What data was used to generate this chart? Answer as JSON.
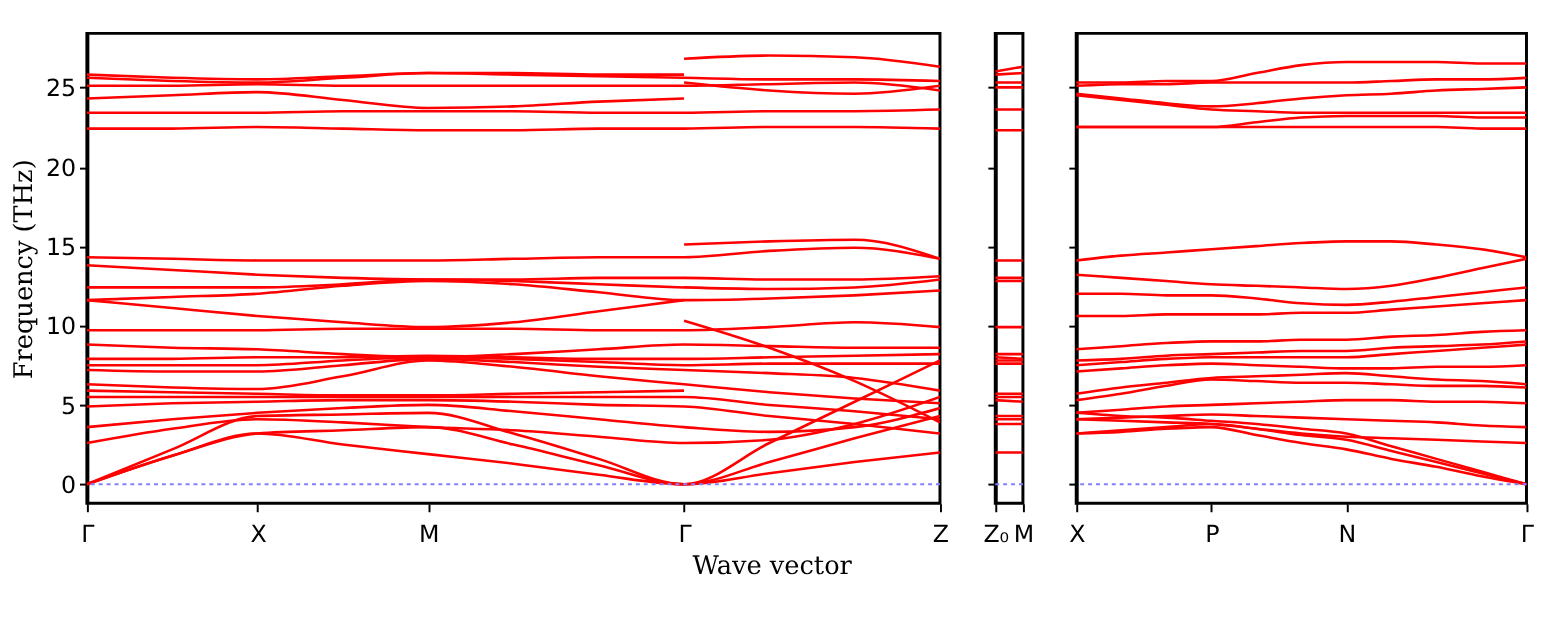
{
  "chart_data": [
    {
      "type": "line",
      "ylabel": "Frequency (THz)",
      "xlabel": "Wave vector",
      "categories": [
        "Γ",
        null,
        "X",
        null,
        "M",
        null,
        null,
        "Γ",
        null,
        null,
        "Z"
      ],
      "ylim": [
        -1.2,
        28.4
      ],
      "yticks": [
        0,
        5,
        10,
        15,
        20,
        25
      ],
      "ref_lines": [
        {
          "axis": "y",
          "value": 0,
          "color": "#8080ff",
          "line_style": "dotted"
        }
      ],
      "series": [
        {
          "color": "#ff0000",
          "values": [
            22.4,
            22.4,
            22.5,
            22.4,
            22.3,
            22.3,
            22.4,
            22.4,
            22.5,
            22.5,
            22.4
          ]
        },
        {
          "color": "#ff0000",
          "values": [
            23.4,
            23.4,
            23.4,
            23.5,
            23.5,
            23.5,
            23.4,
            23.4,
            23.5,
            23.5,
            23.6
          ]
        },
        {
          "color": "#ff0000",
          "values": [
            24.3,
            24.5,
            24.7,
            24.2,
            23.7,
            23.8,
            24.1,
            24.3,
            null,
            null,
            null
          ]
        },
        {
          "color": "#ff0000",
          "values": [
            25.1,
            25.1,
            25.2,
            25.1,
            25.1,
            25.1,
            25.1,
            25.1,
            25.2,
            25.3,
            24.8
          ]
        },
        {
          "color": "#ff0000",
          "values": [
            25.6,
            25.4,
            25.3,
            25.6,
            25.9,
            25.8,
            25.7,
            25.6,
            25.5,
            25.5,
            25.4
          ]
        },
        {
          "color": "#ff0000",
          "values": [
            25.8,
            25.6,
            25.5,
            25.7,
            25.9,
            25.9,
            25.8,
            25.8,
            null,
            null,
            null
          ]
        },
        {
          "color": "#ff0000",
          "values": [
            null,
            null,
            null,
            null,
            null,
            null,
            null,
            26.8,
            27.0,
            26.9,
            26.3
          ]
        },
        {
          "color": "#ff0000",
          "values": [
            null,
            null,
            null,
            null,
            null,
            null,
            null,
            25.3,
            24.8,
            24.6,
            25.1
          ]
        },
        {
          "color": "#ff0000",
          "values": [
            14.3,
            14.2,
            14.1,
            14.1,
            14.1,
            14.2,
            14.3,
            14.3,
            14.7,
            14.9,
            14.2
          ]
        },
        {
          "color": "#ff0000",
          "values": [
            null,
            null,
            null,
            null,
            null,
            null,
            null,
            15.1,
            15.3,
            15.4,
            14.2
          ]
        },
        {
          "color": "#ff0000",
          "values": [
            13.8,
            13.5,
            13.2,
            13.0,
            12.9,
            12.9,
            13.0,
            13.0,
            12.9,
            12.9,
            13.1
          ]
        },
        {
          "color": "#ff0000",
          "values": [
            12.4,
            12.4,
            12.4,
            12.6,
            12.9,
            12.8,
            12.6,
            12.4,
            12.3,
            12.4,
            12.9
          ]
        },
        {
          "color": "#ff0000",
          "values": [
            11.6,
            11.8,
            12.0,
            12.5,
            12.8,
            12.6,
            12.1,
            11.6,
            11.7,
            11.9,
            12.2
          ]
        },
        {
          "color": "#ff0000",
          "values": [
            11.6,
            11.1,
            10.6,
            10.2,
            9.9,
            10.2,
            10.9,
            11.6,
            null,
            null,
            null
          ]
        },
        {
          "color": "#ff0000",
          "values": [
            9.7,
            9.7,
            9.7,
            9.8,
            9.8,
            9.8,
            9.7,
            9.7,
            9.9,
            10.2,
            9.9
          ]
        },
        {
          "color": "#ff0000",
          "values": [
            null,
            null,
            null,
            null,
            null,
            null,
            null,
            10.3,
            8.6,
            6.5,
            3.9
          ]
        },
        {
          "color": "#ff0000",
          "values": [
            8.8,
            8.6,
            8.5,
            8.2,
            8.0,
            8.2,
            8.5,
            8.8,
            8.7,
            8.6,
            8.6
          ]
        },
        {
          "color": "#ff0000",
          "values": [
            7.9,
            7.9,
            8.0,
            8.0,
            8.1,
            8.0,
            7.9,
            7.9,
            8.0,
            8.1,
            8.2
          ]
        },
        {
          "color": "#ff0000",
          "values": [
            7.5,
            7.5,
            7.5,
            7.8,
            8.0,
            7.9,
            7.7,
            7.5,
            7.6,
            7.6,
            7.6
          ]
        },
        {
          "color": "#ff0000",
          "values": [
            7.2,
            7.1,
            7.1,
            7.5,
            7.9,
            7.7,
            7.4,
            7.2,
            7.0,
            6.7,
            5.9
          ]
        },
        {
          "color": "#ff0000",
          "values": [
            6.3,
            6.1,
            6.0,
            6.8,
            7.8,
            7.4,
            6.8,
            6.3,
            5.8,
            5.4,
            5.1
          ]
        },
        {
          "color": "#ff0000",
          "values": [
            5.9,
            5.8,
            5.7,
            5.6,
            5.6,
            5.7,
            5.8,
            5.9,
            null,
            null,
            null
          ]
        },
        {
          "color": "#ff0000",
          "values": [
            5.5,
            5.5,
            5.5,
            5.5,
            5.5,
            5.5,
            5.5,
            5.5,
            5.0,
            4.6,
            4.1
          ]
        },
        {
          "color": "#ff0000",
          "values": [
            4.9,
            5.1,
            5.2,
            5.3,
            5.3,
            5.2,
            5.0,
            4.9,
            4.3,
            3.8,
            3.2
          ]
        },
        {
          "color": "#ff0000",
          "values": [
            3.6,
            4.1,
            4.5,
            4.8,
            5.0,
            4.6,
            4.1,
            3.6,
            3.3,
            3.6,
            4.8
          ]
        },
        {
          "color": "#ff0000",
          "values": [
            2.6,
            3.5,
            4.1,
            3.9,
            3.6,
            3.4,
            3.0,
            2.6,
            2.8,
            3.8,
            5.5
          ]
        },
        {
          "color": "#ff0000",
          "values": [
            0,
            2.2,
            4.3,
            4.4,
            4.5,
            3.2,
            1.6,
            0,
            2.6,
            5.2,
            7.8
          ]
        },
        {
          "color": "#ff0000",
          "values": [
            0,
            1.8,
            3.2,
            3.4,
            3.6,
            2.5,
            1.2,
            0,
            0.7,
            1.4,
            2.0
          ]
        },
        {
          "color": "#ff0000",
          "values": [
            0,
            1.8,
            3.2,
            2.5,
            1.9,
            1.3,
            0.6,
            0,
            1.4,
            2.9,
            4.3
          ]
        }
      ]
    },
    {
      "type": "line",
      "tick_labels": "x",
      "categories": [
        "Z₀",
        "M"
      ],
      "ylim": [
        -1.2,
        28.4
      ],
      "yticks": [
        0,
        5,
        10,
        15,
        20,
        25
      ],
      "ref_lines": [
        {
          "axis": "y",
          "value": 0,
          "color": "#8080ff",
          "line_style": "dotted"
        }
      ],
      "series": [
        {
          "color": "#ff0000",
          "values": [
            26.0,
            26.3
          ]
        },
        {
          "color": "#ff0000",
          "values": [
            25.8,
            25.9
          ]
        },
        {
          "color": "#ff0000",
          "values": [
            25.3,
            25.3
          ]
        },
        {
          "color": "#ff0000",
          "values": [
            25.0,
            25.0
          ]
        },
        {
          "color": "#ff0000",
          "values": [
            23.6,
            23.6
          ]
        },
        {
          "color": "#ff0000",
          "values": [
            22.3,
            22.3
          ]
        },
        {
          "color": "#ff0000",
          "values": [
            14.1,
            14.1
          ]
        },
        {
          "color": "#ff0000",
          "values": [
            13.0,
            13.0
          ]
        },
        {
          "color": "#ff0000",
          "values": [
            12.8,
            12.8
          ]
        },
        {
          "color": "#ff0000",
          "values": [
            9.9,
            9.9
          ]
        },
        {
          "color": "#ff0000",
          "values": [
            8.2,
            8.2
          ]
        },
        {
          "color": "#ff0000",
          "values": [
            8.0,
            7.9
          ]
        },
        {
          "color": "#ff0000",
          "values": [
            7.8,
            7.8
          ]
        },
        {
          "color": "#ff0000",
          "values": [
            7.6,
            7.6
          ]
        },
        {
          "color": "#ff0000",
          "values": [
            5.7,
            5.7
          ]
        },
        {
          "color": "#ff0000",
          "values": [
            5.5,
            5.5
          ]
        },
        {
          "color": "#ff0000",
          "values": [
            5.3,
            5.2
          ]
        },
        {
          "color": "#ff0000",
          "values": [
            4.3,
            4.3
          ]
        },
        {
          "color": "#ff0000",
          "values": [
            4.1,
            4.1
          ]
        },
        {
          "color": "#ff0000",
          "values": [
            3.8,
            3.8
          ]
        },
        {
          "color": "#ff0000",
          "values": [
            2.0,
            2.0
          ]
        }
      ]
    },
    {
      "type": "line",
      "tick_labels": "x",
      "categories": [
        "X",
        null,
        null,
        "P",
        null,
        null,
        "N",
        null,
        null,
        null,
        "Γ"
      ],
      "ylim": [
        -1.2,
        28.4
      ],
      "yticks": [
        0,
        5,
        10,
        15,
        20,
        25
      ],
      "ref_lines": [
        {
          "axis": "y",
          "value": 0,
          "color": "#8080ff",
          "line_style": "dotted"
        }
      ],
      "series": [
        {
          "color": "#ff0000",
          "values": [
            25.3,
            25.3,
            25.4,
            25.4,
            25.9,
            26.4,
            26.6,
            26.6,
            26.6,
            26.5,
            26.5
          ]
        },
        {
          "color": "#ff0000",
          "values": [
            25.1,
            25.2,
            25.2,
            25.3,
            25.3,
            25.3,
            25.3,
            25.4,
            25.5,
            25.5,
            25.6
          ]
        },
        {
          "color": "#ff0000",
          "values": [
            24.6,
            24.3,
            24.0,
            23.8,
            24.0,
            24.3,
            24.5,
            24.6,
            24.8,
            24.9,
            25.0
          ]
        },
        {
          "color": "#ff0000",
          "values": [
            24.5,
            24.2,
            23.9,
            23.6,
            23.5,
            23.4,
            23.4,
            23.4,
            23.4,
            23.4,
            23.4
          ]
        },
        {
          "color": "#ff0000",
          "values": [
            22.5,
            22.5,
            22.5,
            22.5,
            22.8,
            23.1,
            23.2,
            23.2,
            23.2,
            23.1,
            23.1
          ]
        },
        {
          "color": "#ff0000",
          "values": [
            22.5,
            22.5,
            22.5,
            22.5,
            22.5,
            22.5,
            22.5,
            22.5,
            22.5,
            22.4,
            22.4
          ]
        },
        {
          "color": "#ff0000",
          "values": [
            14.1,
            14.4,
            14.6,
            14.8,
            15.0,
            15.2,
            15.3,
            15.3,
            15.1,
            14.8,
            14.3
          ]
        },
        {
          "color": "#ff0000",
          "values": [
            13.2,
            13.0,
            12.8,
            12.6,
            12.5,
            12.4,
            12.3,
            12.5,
            13.0,
            13.6,
            14.2
          ]
        },
        {
          "color": "#ff0000",
          "values": [
            12.0,
            12.0,
            11.9,
            11.9,
            11.7,
            11.4,
            11.3,
            11.5,
            11.8,
            12.1,
            12.4
          ]
        },
        {
          "color": "#ff0000",
          "values": [
            10.6,
            10.6,
            10.7,
            10.7,
            10.7,
            10.8,
            10.8,
            11.0,
            11.2,
            11.4,
            11.6
          ]
        },
        {
          "color": "#ff0000",
          "values": [
            8.5,
            8.7,
            8.9,
            9.0,
            9.0,
            9.1,
            9.1,
            9.3,
            9.4,
            9.6,
            9.7
          ]
        },
        {
          "color": "#ff0000",
          "values": [
            7.8,
            7.9,
            8.1,
            8.2,
            8.3,
            8.4,
            8.4,
            8.6,
            8.7,
            8.8,
            9.0
          ]
        },
        {
          "color": "#ff0000",
          "values": [
            7.5,
            7.7,
            7.9,
            8.0,
            8.0,
            8.0,
            8.0,
            8.2,
            8.4,
            8.6,
            8.8
          ]
        },
        {
          "color": "#ff0000",
          "values": [
            7.1,
            7.3,
            7.5,
            7.6,
            7.5,
            7.4,
            7.3,
            7.3,
            7.4,
            7.4,
            7.5
          ]
        },
        {
          "color": "#ff0000",
          "values": [
            5.7,
            6.1,
            6.4,
            6.7,
            6.8,
            6.9,
            7.0,
            6.8,
            6.6,
            6.5,
            6.3
          ]
        },
        {
          "color": "#ff0000",
          "values": [
            5.3,
            5.7,
            6.2,
            6.6,
            6.5,
            6.4,
            6.4,
            6.3,
            6.2,
            6.2,
            6.1
          ]
        },
        {
          "color": "#ff0000",
          "values": [
            4.5,
            4.7,
            4.9,
            5.0,
            5.1,
            5.2,
            5.3,
            5.3,
            5.2,
            5.2,
            5.1
          ]
        },
        {
          "color": "#ff0000",
          "values": [
            4.1,
            4.2,
            4.3,
            4.4,
            4.3,
            4.2,
            4.1,
            4.0,
            3.9,
            3.7,
            3.6
          ]
        },
        {
          "color": "#ff0000",
          "values": [
            3.2,
            3.4,
            3.6,
            3.8,
            3.5,
            3.2,
            3.0,
            2.9,
            2.8,
            2.7,
            2.6
          ]
        },
        {
          "color": "#ff0000",
          "values": [
            4.5,
            4.3,
            4.2,
            4.0,
            3.8,
            3.5,
            3.2,
            2.4,
            1.6,
            0.8,
            0
          ]
        },
        {
          "color": "#ff0000",
          "values": [
            4.1,
            4.0,
            3.9,
            3.8,
            3.5,
            3.1,
            2.8,
            2.1,
            1.4,
            0.7,
            0
          ]
        },
        {
          "color": "#ff0000",
          "values": [
            3.2,
            3.3,
            3.5,
            3.6,
            3.1,
            2.6,
            2.2,
            1.6,
            1.1,
            0.5,
            0
          ]
        }
      ]
    }
  ]
}
